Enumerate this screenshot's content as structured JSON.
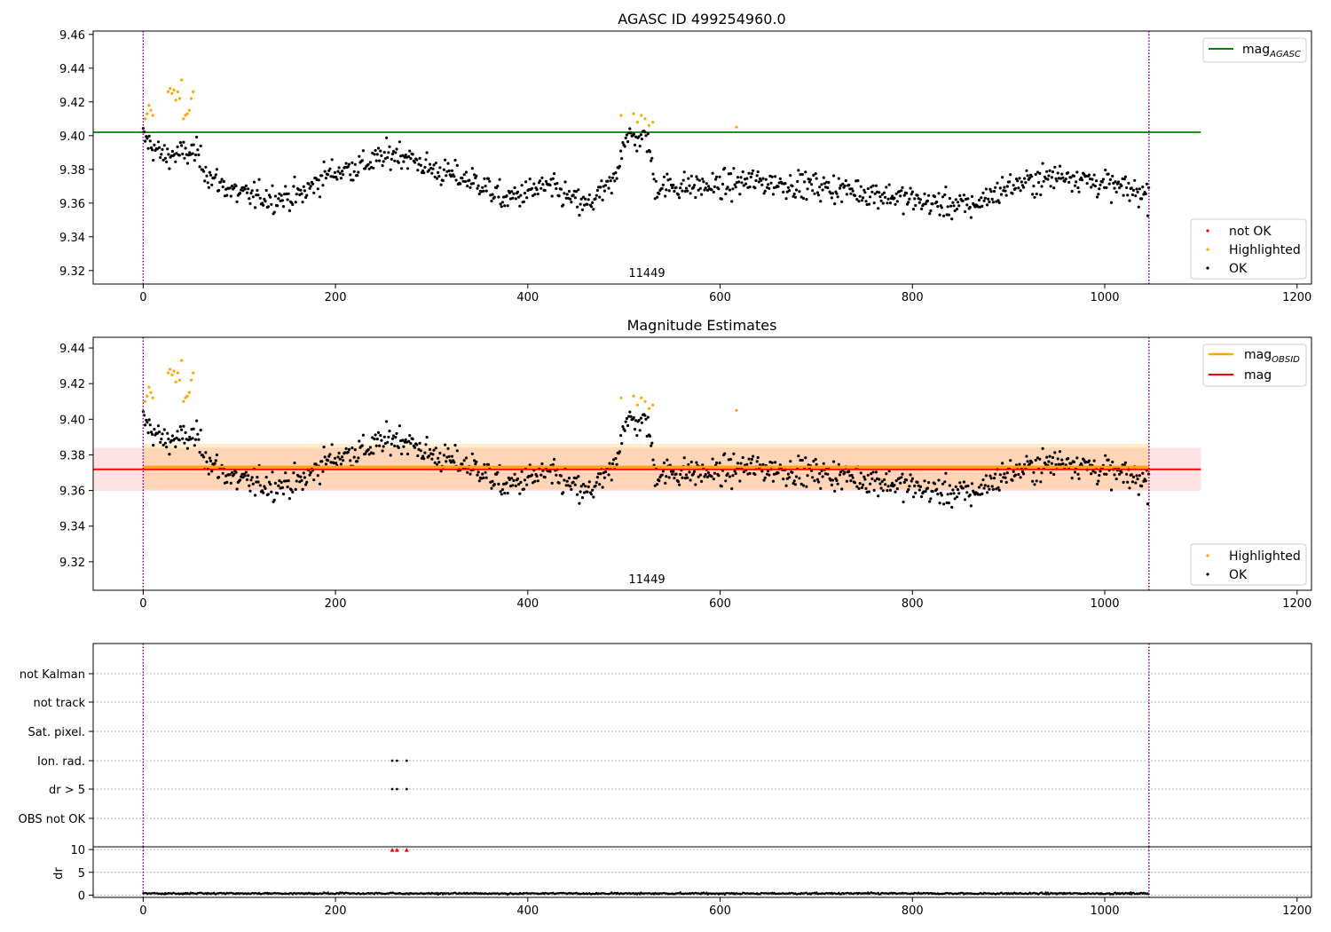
{
  "chart_data": [
    {
      "type": "scatter",
      "title": "AGASC ID 499254960.0",
      "xlim": [
        -52,
        1215
      ],
      "ylim": [
        9.312,
        9.462
      ],
      "xticks": [
        0,
        200,
        400,
        600,
        800,
        1000,
        1200
      ],
      "yticks": [
        9.32,
        9.34,
        9.36,
        9.38,
        9.4,
        9.42,
        9.44,
        9.46
      ],
      "annotation": {
        "text": "11449",
        "x": 523,
        "y": 9.3165
      },
      "vlines": {
        "color": "#800080",
        "style": "dotted",
        "x": [
          0,
          1046
        ]
      },
      "hlines": [
        {
          "label": "mag_AGASC",
          "y": 9.402,
          "xrange": [
            -52,
            1100
          ],
          "color": "#008000"
        }
      ],
      "legend_top": {
        "position": "top-right",
        "entries": [
          "mag_AGASC"
        ]
      },
      "legend_bottom": {
        "position": "lower-right",
        "entries": [
          "not OK",
          "Highlighted",
          "OK"
        ]
      },
      "series": [
        {
          "name": "not OK",
          "color": "#ff0000",
          "points": []
        },
        {
          "name": "Highlighted",
          "color": "#ffa500",
          "points": [
            [
              2,
              9.41
            ],
            [
              4,
              9.413
            ],
            [
              6,
              9.418
            ],
            [
              8,
              9.415
            ],
            [
              10,
              9.412
            ],
            [
              26,
              9.426
            ],
            [
              28,
              9.428
            ],
            [
              30,
              9.425
            ],
            [
              32,
              9.427
            ],
            [
              34,
              9.421
            ],
            [
              36,
              9.426
            ],
            [
              38,
              9.422
            ],
            [
              40,
              9.433
            ],
            [
              42,
              9.41
            ],
            [
              44,
              9.412
            ],
            [
              46,
              9.413
            ],
            [
              48,
              9.415
            ],
            [
              50,
              9.422
            ],
            [
              52,
              9.426
            ],
            [
              497,
              9.412
            ],
            [
              510,
              9.413
            ],
            [
              514,
              9.408
            ],
            [
              518,
              9.412
            ],
            [
              522,
              9.41
            ],
            [
              526,
              9.406
            ],
            [
              530,
              9.408
            ],
            [
              617,
              9.405
            ]
          ]
        },
        {
          "name": "OK",
          "color": "#000000",
          "points": []
        }
      ]
    },
    {
      "type": "scatter",
      "title": "Magnitude Estimates",
      "xlim": [
        -52,
        1215
      ],
      "ylim": [
        9.304,
        9.446
      ],
      "xticks": [
        0,
        200,
        400,
        600,
        800,
        1000,
        1200
      ],
      "yticks": [
        9.32,
        9.34,
        9.36,
        9.38,
        9.4,
        9.42,
        9.44
      ],
      "annotation": {
        "text": "11449",
        "x": 523,
        "y": 9.3065
      },
      "vlines": {
        "color": "#800080",
        "style": "dotted",
        "x": [
          0,
          1046
        ]
      },
      "hlines": [
        {
          "label": "mag_OBSID",
          "y": 9.3733,
          "xrange": [
            0,
            1046
          ],
          "color": "#ffa500",
          "band": [
            9.3605,
            9.3862
          ]
        },
        {
          "label": "mag",
          "y": 9.3719,
          "xrange": [
            -52,
            1100
          ],
          "color": "#ff0000",
          "band": [
            9.3598,
            9.384
          ]
        }
      ],
      "legend_top": {
        "position": "top-right",
        "entries": [
          "mag_OBSID",
          "mag"
        ]
      },
      "legend_bottom": {
        "position": "lower-right",
        "entries": [
          "Highlighted",
          "OK"
        ]
      },
      "series": [
        {
          "name": "Highlighted",
          "color": "#ffa500",
          "points": [
            [
              2,
              9.41
            ],
            [
              4,
              9.413
            ],
            [
              6,
              9.418
            ],
            [
              8,
              9.415
            ],
            [
              10,
              9.412
            ],
            [
              26,
              9.426
            ],
            [
              28,
              9.428
            ],
            [
              30,
              9.425
            ],
            [
              32,
              9.427
            ],
            [
              34,
              9.421
            ],
            [
              36,
              9.426
            ],
            [
              38,
              9.422
            ],
            [
              40,
              9.433
            ],
            [
              42,
              9.41
            ],
            [
              44,
              9.412
            ],
            [
              46,
              9.413
            ],
            [
              48,
              9.415
            ],
            [
              50,
              9.422
            ],
            [
              52,
              9.426
            ],
            [
              497,
              9.412
            ],
            [
              510,
              9.413
            ],
            [
              514,
              9.408
            ],
            [
              518,
              9.412
            ],
            [
              522,
              9.41
            ],
            [
              526,
              9.406
            ],
            [
              530,
              9.408
            ],
            [
              617,
              9.405
            ]
          ]
        },
        {
          "name": "OK",
          "color": "#000000",
          "points": []
        }
      ]
    },
    {
      "type": "scatter",
      "title": "",
      "xlim": [
        -52,
        1215
      ],
      "categories": [
        "not Kalman",
        "not track",
        "Sat. pixel.",
        "Ion. rad.",
        "dr > 5",
        "OBS not OK"
      ],
      "vlines": {
        "color": "#800080",
        "style": "dotted",
        "x": [
          0,
          1046
        ]
      },
      "flags": {
        "Ion. rad.": [
          259,
          264,
          274
        ],
        "dr > 5": [
          259,
          264,
          274
        ]
      }
    },
    {
      "type": "scatter",
      "title": "",
      "xlabel": "",
      "ylabel": "dr",
      "xlim": [
        -52,
        1215
      ],
      "ylim": [
        -0.5,
        10.6
      ],
      "xticks": [
        0,
        200,
        400,
        600,
        800,
        1000,
        1200
      ],
      "yticks": [
        0,
        5,
        10
      ],
      "vlines": {
        "color": "#800080",
        "style": "dotted",
        "x": [
          0,
          1046
        ]
      },
      "outliers": {
        "color": "#ff0000",
        "marker": "triangle",
        "x": [
          259,
          264,
          274
        ],
        "y": 9.9
      },
      "series": [
        {
          "name": "dr",
          "color": "#000000",
          "mean": 0.35
        }
      ]
    }
  ]
}
